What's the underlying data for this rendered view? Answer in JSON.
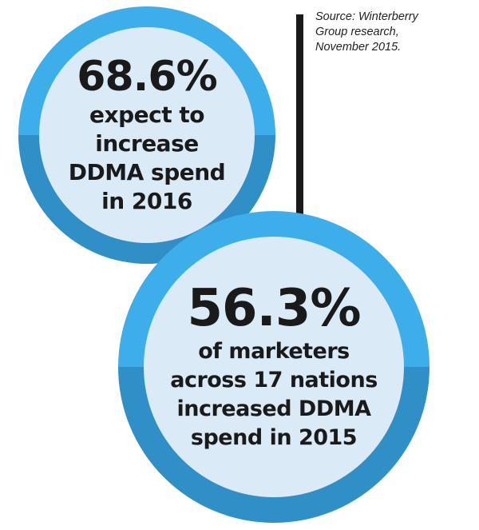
{
  "source": {
    "lines": [
      "Source: Winterberry",
      "Group research,",
      "November 2015."
    ]
  },
  "stats": [
    {
      "value": "68.6%",
      "caption_lines": [
        "expect to",
        "increase",
        "DDMA spend",
        "in 2016"
      ]
    },
    {
      "value": "56.3%",
      "caption_lines": [
        "of marketers",
        "across 17 nations",
        "increased DDMA",
        "spend in 2015"
      ]
    }
  ],
  "colors": {
    "ring_light": "#3daee9",
    "ring_dark": "#2f8fc6",
    "inner_fill": "#daeaf7",
    "text": "#1a1a1a",
    "divider": "#1a1a1a"
  }
}
